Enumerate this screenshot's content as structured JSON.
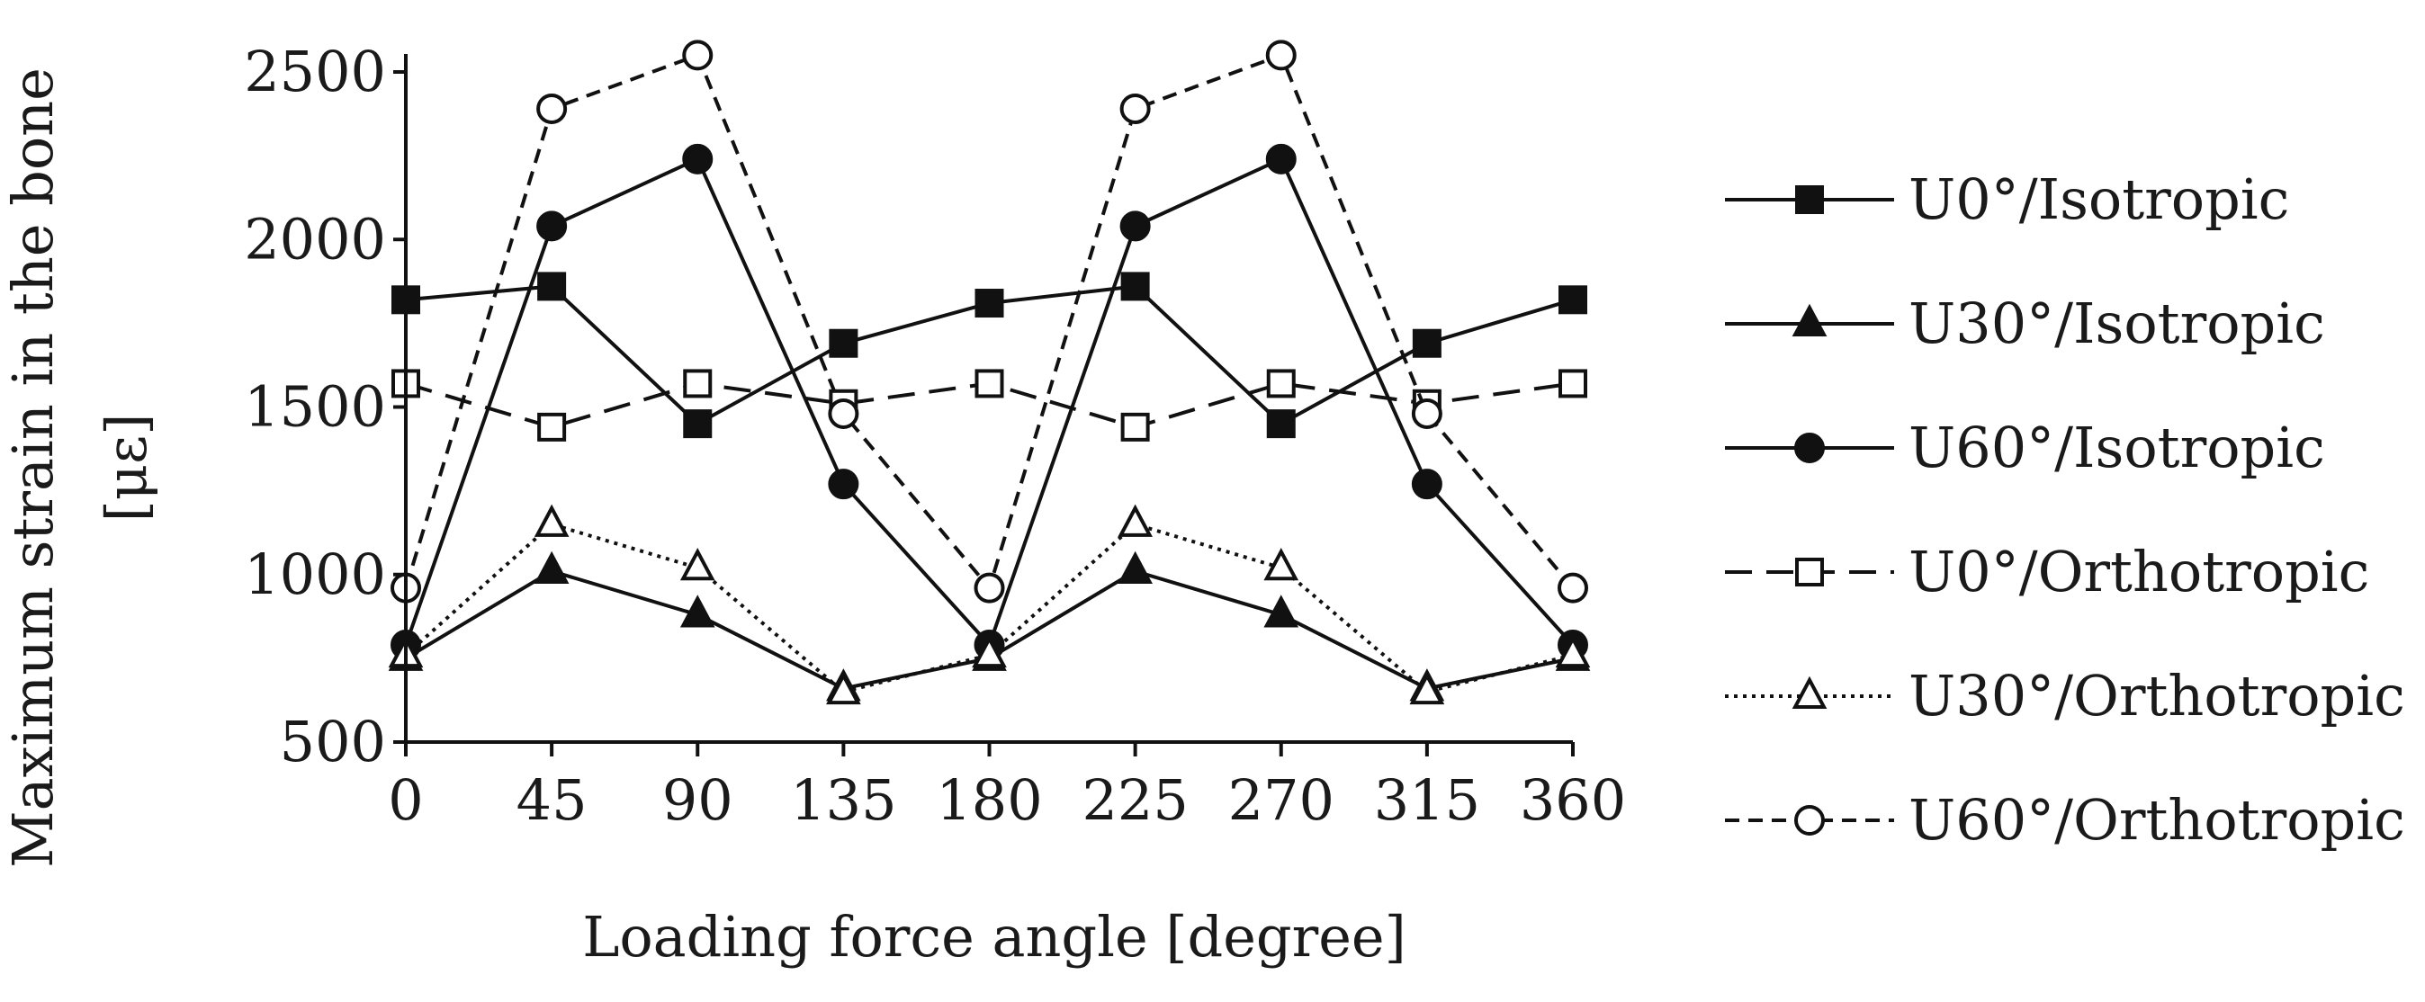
{
  "chart_data": {
    "type": "line",
    "title": "",
    "xlabel": "Loading force angle [degree]",
    "ylabel_line1": "Maximum strain in the bone",
    "ylabel_line2": "[με]",
    "x": [
      0,
      45,
      90,
      135,
      180,
      225,
      270,
      315,
      360
    ],
    "x_tick_labels": [
      "0",
      "45",
      "90",
      "135",
      "180",
      "225",
      "270",
      "315",
      "360"
    ],
    "ylim": [
      500,
      2500
    ],
    "y_ticks": [
      500,
      1000,
      1500,
      2000,
      2500
    ],
    "y_tick_labels": [
      "500",
      "1000",
      "1500",
      "2000",
      "2500"
    ],
    "grid": false,
    "legend_position": "right",
    "series": [
      {
        "name": "U0°/Isotropic",
        "values": [
          1820,
          1860,
          1450,
          1690,
          1810,
          1860,
          1450,
          1690,
          1820
        ],
        "line_style": "solid",
        "marker": "square",
        "marker_fill": "filled",
        "color": "#111111"
      },
      {
        "name": "U30°/Isotropic",
        "values": [
          750,
          1010,
          880,
          660,
          750,
          1010,
          880,
          660,
          750
        ],
        "line_style": "solid",
        "marker": "triangle",
        "marker_fill": "filled",
        "color": "#111111"
      },
      {
        "name": "U60°/Isotropic",
        "values": [
          790,
          2040,
          2240,
          1270,
          790,
          2040,
          2240,
          1270,
          790
        ],
        "line_style": "solid",
        "marker": "circle",
        "marker_fill": "filled",
        "color": "#111111"
      },
      {
        "name": "U0°/Orthotropic",
        "values": [
          1570,
          1440,
          1570,
          1510,
          1570,
          1440,
          1570,
          1510,
          1570
        ],
        "line_style": "dashed-long",
        "marker": "square",
        "marker_fill": "hollow",
        "color": "#111111"
      },
      {
        "name": "U30°/Orthotropic",
        "values": [
          760,
          1150,
          1020,
          650,
          760,
          1150,
          1020,
          650,
          760
        ],
        "line_style": "dotted",
        "marker": "triangle",
        "marker_fill": "hollow",
        "color": "#111111"
      },
      {
        "name": "U60°/Orthotropic",
        "values": [
          960,
          2390,
          2550,
          1480,
          960,
          2390,
          2550,
          1480,
          960
        ],
        "line_style": "dashed",
        "marker": "circle",
        "marker_fill": "hollow",
        "color": "#111111"
      }
    ]
  }
}
